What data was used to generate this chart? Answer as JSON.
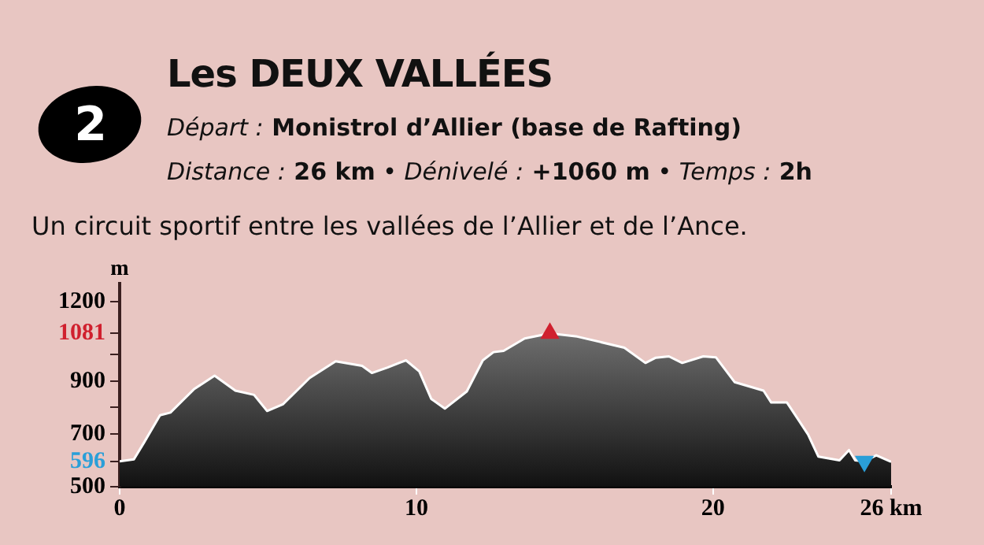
{
  "chart_data": {
    "type": "area",
    "title": "Les DEUX VALLÉES",
    "subtitle": "Départ : Monistrol d’Allier (base de Rafting)",
    "annotations": [
      "2",
      "Distance : 26 km • Dénivelé : +1060 m • Temps : 2h",
      "Un circuit sportif  entre les vallées de l’Allier et de l’Ance."
    ],
    "ylabel": "m",
    "xlim": [
      0,
      26
    ],
    "xticks": [
      0,
      10,
      20,
      {
        "value": 26,
        "label": "26 km"
      }
    ],
    "ylim": [
      500,
      1270
    ],
    "yticks": [
      500,
      596,
      700,
      {
        "value": 800,
        "label": null
      },
      900,
      {
        "value": 1000,
        "label": null
      },
      1081,
      1200
    ],
    "grid": false,
    "legend": false,
    "series": [
      {
        "color": "#8c8c8c",
        "x": [
          0,
          0.48,
          0.83,
          1.36,
          1.71,
          2.5,
          3.2,
          3.9,
          4.53,
          4.97,
          5.5,
          6.4,
          7.28,
          8.17,
          8.5,
          9.03,
          9.65,
          10.1,
          10.5,
          10.96,
          11.7,
          12.24,
          12.6,
          12.94,
          13.65,
          14.5,
          15.42,
          17.01,
          17.72,
          18.07,
          18.51,
          18.96,
          19.67,
          20.1,
          20.73,
          21.7,
          21.96,
          22.49,
          23.2,
          23.55,
          24.26,
          24.58,
          24.79,
          25.1,
          25.5,
          26
        ],
        "values": [
          596,
          604,
          669,
          771,
          781,
          869,
          921,
          864,
          848,
          787,
          812,
          912,
          975,
          958,
          931,
          952,
          979,
          937,
          833,
          796,
          861,
          979,
          1010,
          1015,
          1062,
          1081,
          1069,
          1027,
          969,
          989,
          994,
          969,
          994,
          990,
          896,
          864,
          819,
          819,
          698,
          614,
          600,
          639,
          600,
          596,
          619,
          594
        ]
      },
      {
        "type": "scatter",
        "marker": "triangle",
        "color": "#d0202e",
        "x": [
          14.5
        ],
        "values": [
          1081
        ]
      },
      {
        "type": "scatter",
        "marker": "triangle-down",
        "color": "#2a9fd8",
        "x": [
          25.1
        ],
        "values": [
          596
        ]
      }
    ]
  }
}
